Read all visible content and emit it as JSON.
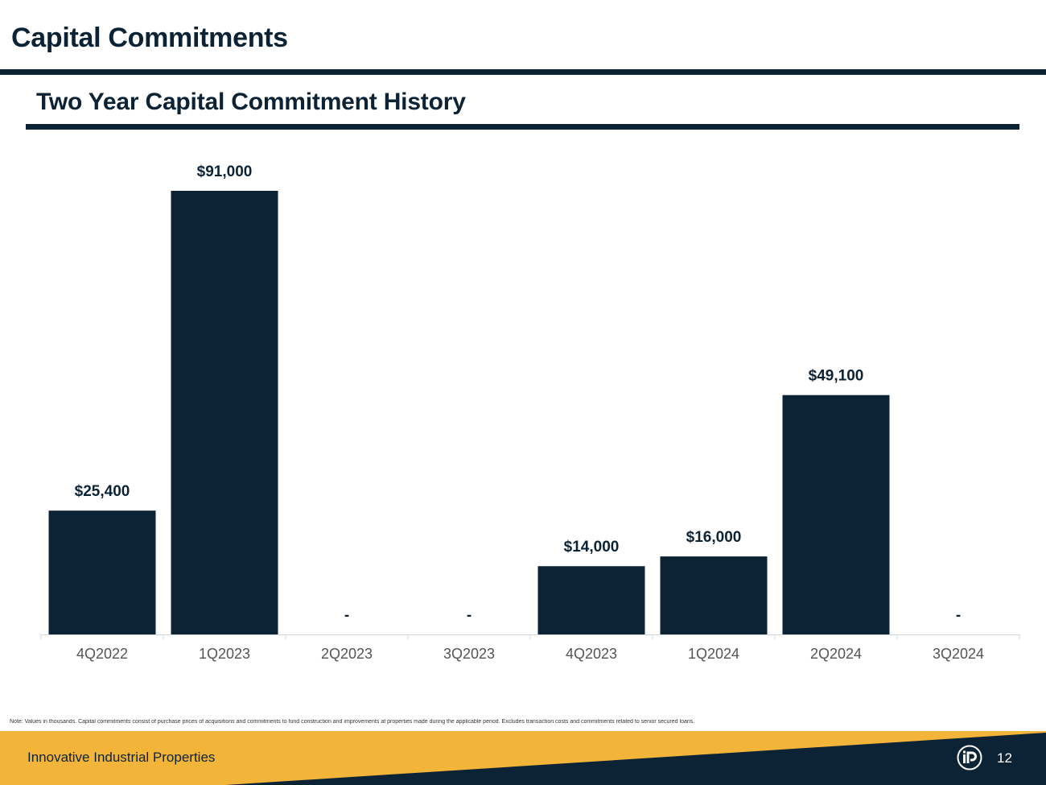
{
  "header": {
    "title": "Capital Commitments",
    "subtitle": "Two Year Capital Commitment History"
  },
  "chart_data": {
    "type": "bar",
    "title": "Two Year Capital Commitment History",
    "categories": [
      "4Q2022",
      "1Q2023",
      "2Q2023",
      "3Q2023",
      "4Q2023",
      "1Q2024",
      "2Q2024",
      "3Q2024"
    ],
    "values": [
      25400,
      91000,
      0,
      0,
      14000,
      16000,
      49100,
      0
    ],
    "data_labels": [
      "$25,400",
      "$91,000",
      "-",
      "-",
      "$14,000",
      "$16,000",
      "$49,100",
      "-"
    ],
    "xlabel": "",
    "ylabel": "",
    "ylim": [
      0,
      91000
    ],
    "grid": false,
    "legend": "none",
    "bar_color": "#0c2336"
  },
  "note": "Note: Values in thousands.  Capital commitments consist of purchase prices of acquisitions and commitments to fund construction and improvements at properties made during the applicable period.  Excludes transaction costs and commitments related to senior secured loans.",
  "footer": {
    "company": "Innovative Industrial Properties",
    "page_number": "12",
    "logo_text": "iP",
    "navy": "#0c2336",
    "gold": "#f2b53a"
  }
}
